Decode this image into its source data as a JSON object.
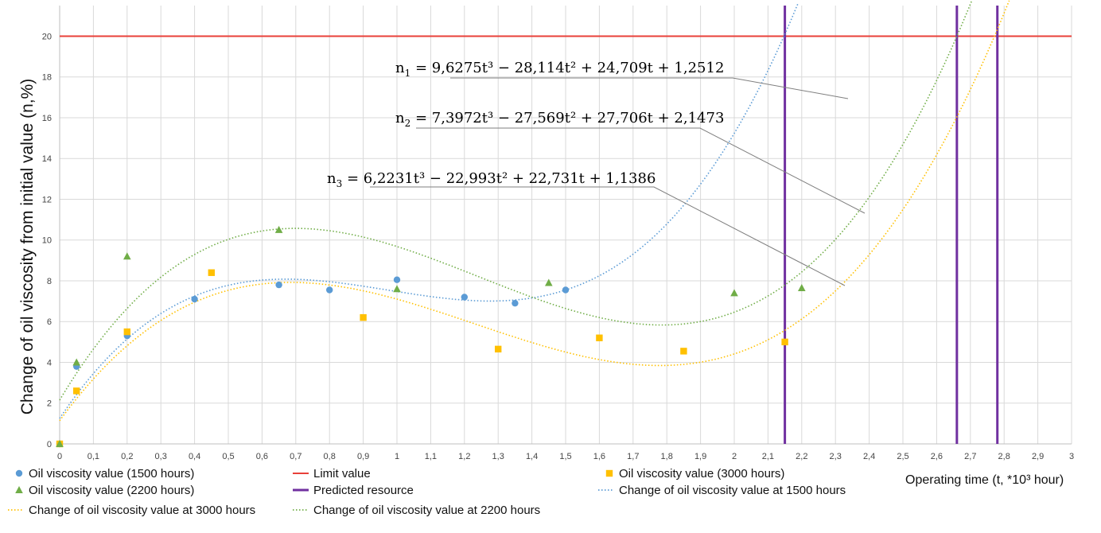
{
  "chart_data": {
    "type": "scatter",
    "ylabel": "Change of oil viscosity from initial value (n,%)",
    "xlabel": "Operating time (t, *10³ hour)",
    "xlim": [
      0,
      3
    ],
    "ylim": [
      0,
      21.5
    ],
    "x_ticks": [
      "0",
      "0,1",
      "0,2",
      "0,3",
      "0,4",
      "0,5",
      "0,6",
      "0,7",
      "0,8",
      "0,9",
      "1",
      "1,1",
      "1,2",
      "1,3",
      "1,4",
      "1,5",
      "1,6",
      "1,7",
      "1,8",
      "1,9",
      "2",
      "2,1",
      "2,2",
      "2,3",
      "2,4",
      "2,5",
      "2,6",
      "2,7",
      "2,8",
      "2,9",
      "3"
    ],
    "y_ticks": [
      "0",
      "2",
      "4",
      "6",
      "8",
      "10",
      "12",
      "14",
      "16",
      "18",
      "20"
    ],
    "grid": "vertical and horizontal",
    "legend_position": "bottom",
    "limit_value": 20,
    "predicted_resource_x": [
      2.15,
      2.66,
      2.78
    ],
    "series": [
      {
        "name": "Oil viscosity value (1500 hours)",
        "marker": "circle",
        "color": "#5B9BD5",
        "points": [
          [
            0,
            0
          ],
          [
            0.05,
            3.8
          ],
          [
            0.2,
            5.3
          ],
          [
            0.4,
            7.1
          ],
          [
            0.65,
            7.8
          ],
          [
            0.8,
            7.55
          ],
          [
            1.0,
            8.05
          ],
          [
            1.2,
            7.2
          ],
          [
            1.35,
            6.9
          ],
          [
            1.5,
            7.55
          ]
        ]
      },
      {
        "name": "Oil viscosity value (3000 hours)",
        "marker": "square",
        "color": "#FFC000",
        "points": [
          [
            0,
            0
          ],
          [
            0.05,
            2.6
          ],
          [
            0.2,
            5.5
          ],
          [
            0.45,
            8.4
          ],
          [
            0.9,
            6.2
          ],
          [
            1.3,
            4.65
          ],
          [
            1.6,
            5.2
          ],
          [
            1.85,
            4.55
          ],
          [
            2.15,
            5.0
          ]
        ]
      },
      {
        "name": "Oil viscosity value (2200 hours)",
        "marker": "triangle",
        "color": "#70AD47",
        "points": [
          [
            0,
            0
          ],
          [
            0.05,
            4.0
          ],
          [
            0.2,
            9.2
          ],
          [
            0.65,
            10.5
          ],
          [
            1.0,
            7.6
          ],
          [
            1.45,
            7.9
          ],
          [
            2.0,
            7.4
          ],
          [
            2.2,
            7.65
          ]
        ]
      }
    ],
    "trendlines": [
      {
        "name": "Change of oil viscosity value at 1500 hours",
        "color": "#5B9BD5",
        "coefficients": [
          9.6275,
          -28.114,
          24.709,
          1.2512
        ]
      },
      {
        "name": "Change of oil viscosity value at 2200 hours",
        "color": "#70AD47",
        "coefficients": [
          7.3972,
          -27.569,
          27.706,
          2.1473
        ]
      },
      {
        "name": "Change of oil viscosity value at 3000 hours",
        "color": "#FFC000",
        "coefficients": [
          6.2231,
          -22.993,
          22.731,
          1.1386
        ]
      }
    ],
    "equations": [
      {
        "sub": "1",
        "text": "9,6275t³ − 28,114t² + 24,709t + 1,2512"
      },
      {
        "sub": "2",
        "text": "7,3972t³ − 27,569t² + 27,706t + 2,1473"
      },
      {
        "sub": "3",
        "text": "6,2231t³ − 22,993t² + 22,731t + 1,1386"
      }
    ],
    "legend": [
      {
        "label": "Oil viscosity value (1500 hours)",
        "kind": "circle",
        "color": "#5B9BD5"
      },
      {
        "label": "Limit value",
        "kind": "line",
        "color": "#E8403A"
      },
      {
        "label": "Oil viscosity value (3000 hours)",
        "kind": "square",
        "color": "#FFC000"
      },
      {
        "label": "Oil viscosity value (2200 hours)",
        "kind": "triangle",
        "color": "#70AD47"
      },
      {
        "label": "Predicted resource",
        "kind": "line",
        "color": "#7030A0"
      },
      {
        "label": "Change of oil viscosity value at 1500 hours",
        "kind": "dotted",
        "color": "#5B9BD5"
      },
      {
        "label": "Change of oil viscosity value at 3000 hours",
        "kind": "dotted",
        "color": "#FFC000"
      },
      {
        "label": "Change of oil viscosity value at 2200 hours",
        "kind": "dotted",
        "color": "#70AD47"
      }
    ],
    "colors": {
      "limit": "#E8403A",
      "resource": "#7030A0",
      "grid": "#D9D9D9",
      "leader": "#7F7F7F"
    }
  }
}
